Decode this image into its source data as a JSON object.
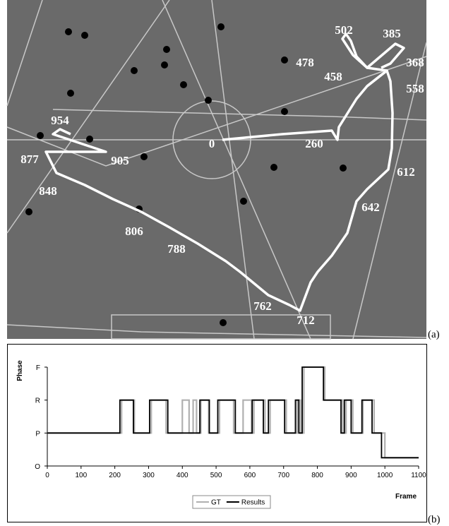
{
  "figure_a": {
    "panel_label": "(a)",
    "frame_labels": [
      "0",
      "260",
      "502",
      "385",
      "368",
      "478",
      "458",
      "558",
      "954",
      "877",
      "905",
      "848",
      "612",
      "642",
      "806",
      "788",
      "762",
      "712"
    ]
  },
  "chart_data": {
    "type": "line",
    "step": true,
    "panel_label": "(b)",
    "y_label": "Phase",
    "x_label": "Frame",
    "xlim": [
      0,
      1100
    ],
    "xticks": [
      0,
      100,
      200,
      300,
      400,
      500,
      600,
      700,
      800,
      900,
      1000,
      1100
    ],
    "ylim": [
      0,
      3
    ],
    "yticks": [
      {
        "value": 0,
        "label": "O"
      },
      {
        "value": 1,
        "label": "P"
      },
      {
        "value": 2,
        "label": "R"
      },
      {
        "value": 3,
        "label": "F"
      }
    ],
    "series": [
      {
        "name": "GT",
        "color": "#b0b0b0",
        "x": [
          0,
          220,
          258,
          308,
          352,
          400,
          420,
          432,
          442,
          455,
          478,
          510,
          552,
          580,
          605,
          612,
          645,
          660,
          708,
          740,
          750,
          760,
          822,
          875,
          885,
          905,
          935,
          968,
          1000,
          1100
        ],
        "values": [
          1,
          2,
          1,
          2,
          1,
          2,
          1,
          2,
          1,
          2,
          1,
          2,
          1,
          2,
          1,
          2,
          1,
          2,
          1,
          2,
          1,
          3,
          2,
          1,
          2,
          1,
          2,
          1,
          0.25,
          0.25
        ]
      },
      {
        "name": "Results",
        "color": "#000000",
        "x": [
          0,
          215,
          255,
          303,
          357,
          452,
          480,
          505,
          557,
          607,
          640,
          655,
          703,
          735,
          745,
          755,
          818,
          870,
          880,
          900,
          932,
          962,
          990,
          1100
        ],
        "values": [
          1,
          2,
          1,
          2,
          1,
          2,
          1,
          2,
          1,
          2,
          1,
          2,
          1,
          2,
          1,
          3,
          2,
          1,
          2,
          1,
          2,
          1,
          0.25,
          0.25
        ]
      }
    ]
  }
}
